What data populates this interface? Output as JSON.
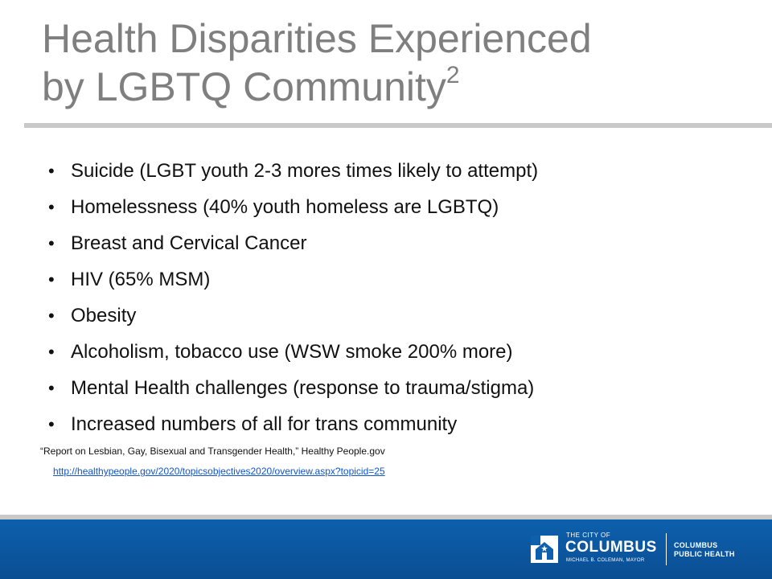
{
  "slide": {
    "title_line1": "Health Disparities Experienced",
    "title_line2": "by LGBTQ Community",
    "title_superscript": "2",
    "bullet_glyph": "•",
    "bullets": [
      "Suicide (LGBT youth 2-3 mores times likely to attempt)",
      "Homelessness (40% youth homeless are LGBTQ)",
      "Breast and Cervical Cancer",
      "HIV (65% MSM)",
      "Obesity",
      "Alcoholism, tobacco use (WSW smoke 200% more)",
      "Mental Health challenges (response to trauma/stigma)",
      "Increased numbers of all for trans community"
    ],
    "reference": "“Report on Lesbian, Gay, Bisexual and Transgender Health,”  Healthy People.gov",
    "reference_url": "http://healthypeople.gov/2020/topicsobjectives2020/overview.aspx?topicid=25"
  },
  "footer": {
    "logo_icon": "city-columbus-logo-icon",
    "logo_small": "THE CITY OF",
    "logo_city": "COLUMBUS",
    "logo_mayor": "MICHAEL B. COLEMAN, MAYOR",
    "dept_line1": "COLUMBUS",
    "dept_line2": "PUBLIC HEALTH"
  },
  "colors": {
    "title": "#7f7f7f",
    "rule": "#c9c9c9",
    "footer_bar": "#0d60ad",
    "link": "#1155cc"
  }
}
